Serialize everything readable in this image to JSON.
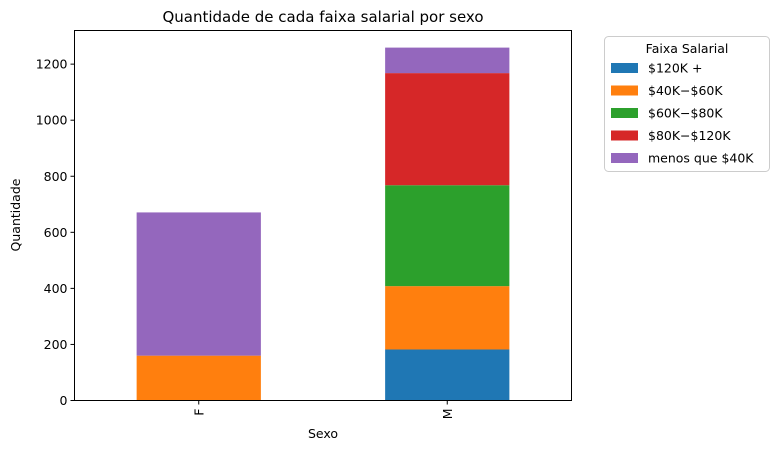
{
  "chart_data": {
    "type": "bar",
    "stacked": true,
    "title": "Quantidade de cada faixa salarial por sexo",
    "xlabel": "Sexo",
    "ylabel": "Quantidade",
    "categories": [
      "F",
      "M"
    ],
    "ylim": [
      0,
      1320
    ],
    "yticks": [
      0,
      200,
      400,
      600,
      800,
      1000,
      1200
    ],
    "series": [
      {
        "name": "$120K +",
        "color": "#1f77b4",
        "values": [
          0,
          182
        ]
      },
      {
        "name": "$40K - $60K",
        "color": "#ff7f0e",
        "values": [
          160,
          226
        ]
      },
      {
        "name": "$60K - $80K",
        "color": "#2ca02c",
        "values": [
          0,
          360
        ]
      },
      {
        "name": "$80K - $120K",
        "color": "#d62728",
        "values": [
          0,
          400
        ]
      },
      {
        "name": "menos que $40K",
        "color": "#9467bd",
        "values": [
          511,
          91
        ]
      }
    ],
    "legend": {
      "title": "Faixa Salarial",
      "placement": "outside-right",
      "entries": [
        "$120K +",
        "$40K−$60K",
        "$60K−$80K",
        "$80K−$120K",
        "menos que $40K"
      ]
    },
    "grid": false
  }
}
